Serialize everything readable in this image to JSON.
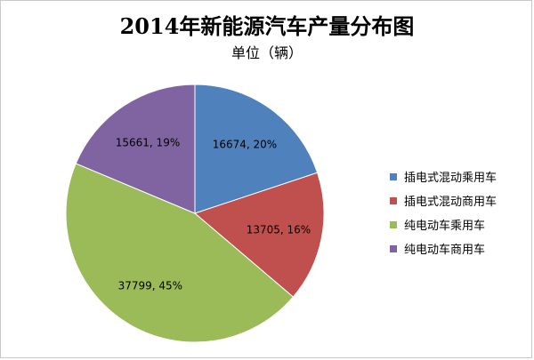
{
  "chart_data": {
    "type": "pie",
    "title": "2014年新能源汽车产量分布图",
    "subtitle": "单位（辆）",
    "slices": [
      {
        "name": "插电式混动乘用车",
        "value": 16674,
        "percent_label": "20%",
        "color": "#4f81bd"
      },
      {
        "name": "插电式混动商用车",
        "value": 13705,
        "percent_label": "16%",
        "color": "#c0504d"
      },
      {
        "name": "纯电动车乘用车",
        "value": 37799,
        "percent_label": "45%",
        "color": "#9bbb59"
      },
      {
        "name": "纯电动车商用车",
        "value": 15661,
        "percent_label": "19%",
        "color": "#8064a2"
      }
    ],
    "legend_position": "right"
  }
}
